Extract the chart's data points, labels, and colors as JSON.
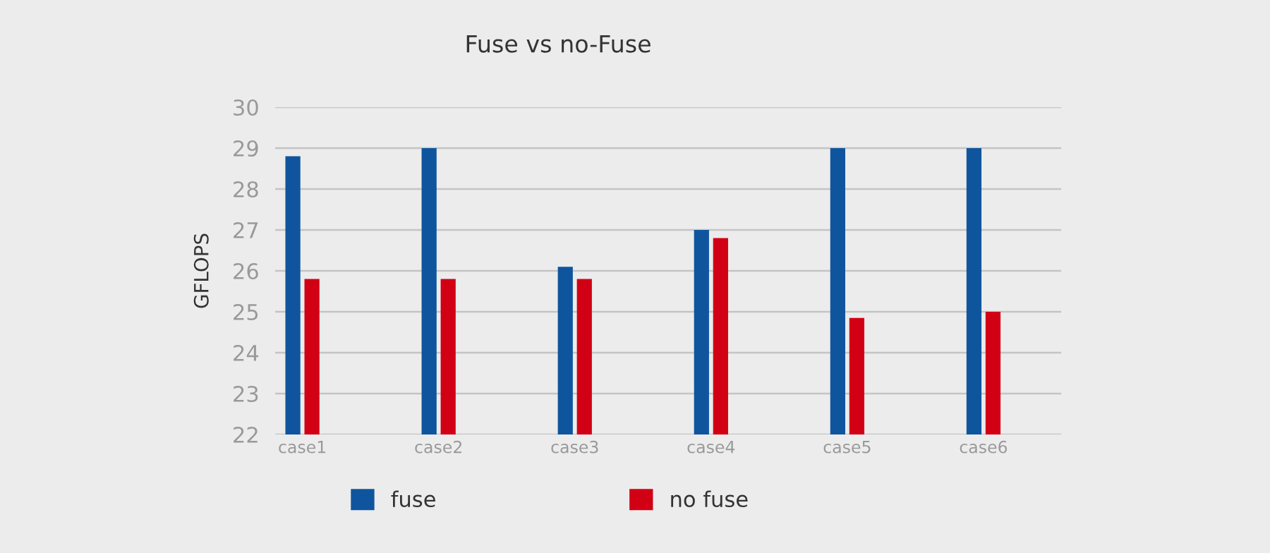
{
  "chart_data": {
    "type": "bar",
    "title": "Fuse vs no-Fuse",
    "ylabel": "GFLOPS",
    "categories": [
      "case1",
      "case2",
      "case3",
      "case4",
      "case5",
      "case6"
    ],
    "series": [
      {
        "name": "fuse",
        "color": "#0f559e",
        "values": [
          28.8,
          29.0,
          26.1,
          27.0,
          29.0,
          29.0
        ]
      },
      {
        "name": "no fuse",
        "color": "#d20015",
        "values": [
          25.8,
          25.8,
          25.8,
          26.8,
          24.85,
          25.0
        ]
      }
    ],
    "ylim": [
      22,
      30
    ],
    "yticks": [
      22,
      23,
      24,
      25,
      26,
      27,
      28,
      29,
      30
    ],
    "grid": "y",
    "legend": "bottom"
  }
}
